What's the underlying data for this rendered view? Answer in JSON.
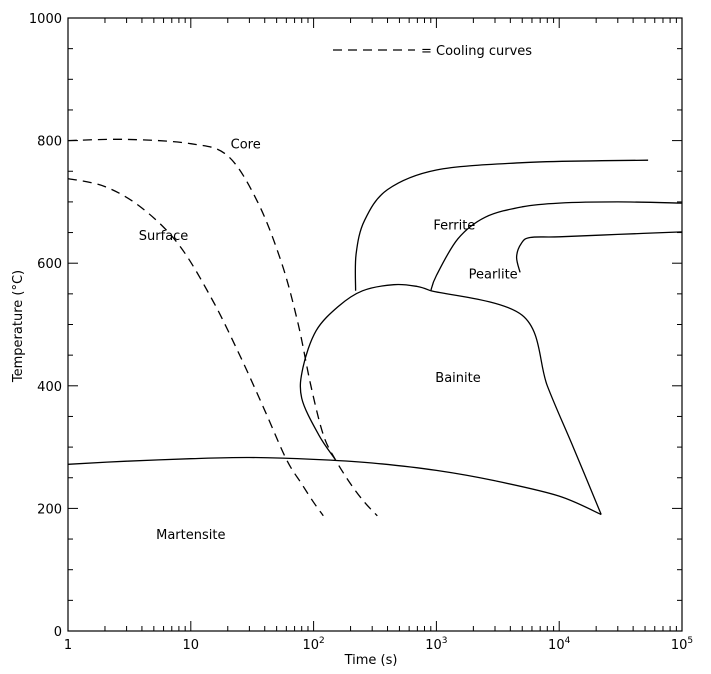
{
  "chart_data": {
    "type": "line",
    "xlabel": "Time (s)",
    "ylabel": "Temperature (°C)",
    "x_scale": "log",
    "xlim": [
      1,
      100000
    ],
    "ylim": [
      0,
      1000
    ],
    "grid": false,
    "x_ticks": [
      {
        "value": 1,
        "base": "1",
        "exp": ""
      },
      {
        "value": 10,
        "base": "10",
        "exp": ""
      },
      {
        "value": 100,
        "base": "10",
        "exp": "2"
      },
      {
        "value": 1000,
        "base": "10",
        "exp": "3"
      },
      {
        "value": 10000,
        "base": "10",
        "exp": "4"
      },
      {
        "value": 100000,
        "base": "10",
        "exp": "5"
      }
    ],
    "y_ticks": [
      0,
      200,
      400,
      600,
      800,
      1000
    ],
    "legend": {
      "text": "= Cooling curves",
      "line_style": "dashed",
      "position": "top-center"
    },
    "series": [
      {
        "id": "core-cooling",
        "label": "Core",
        "style": "dashed",
        "points": [
          [
            1,
            800
          ],
          [
            3,
            802
          ],
          [
            10,
            795
          ],
          [
            20,
            775
          ],
          [
            35,
            700
          ],
          [
            55,
            600
          ],
          [
            75,
            500
          ],
          [
            95,
            400
          ],
          [
            120,
            320
          ],
          [
            150,
            280
          ],
          [
            200,
            240
          ],
          [
            260,
            210
          ],
          [
            330,
            188
          ]
        ]
      },
      {
        "id": "surface-cooling",
        "label": "Surface",
        "style": "dashed",
        "points": [
          [
            1,
            738
          ],
          [
            2,
            725
          ],
          [
            4,
            690
          ],
          [
            8,
            630
          ],
          [
            15,
            540
          ],
          [
            25,
            450
          ],
          [
            40,
            360
          ],
          [
            60,
            280
          ],
          [
            80,
            240
          ],
          [
            100,
            210
          ],
          [
            120,
            188
          ]
        ]
      }
    ],
    "boundaries": [
      {
        "id": "ferrite-start",
        "style": "solid",
        "points": [
          [
            220,
            555
          ],
          [
            222,
            615
          ],
          [
            260,
            670
          ],
          [
            400,
            720
          ],
          [
            1000,
            752
          ],
          [
            5000,
            764
          ],
          [
            20000,
            767
          ],
          [
            53000,
            768
          ]
        ]
      },
      {
        "id": "pearlite-start",
        "style": "solid",
        "points": [
          [
            900,
            555
          ],
          [
            1000,
            580
          ],
          [
            1500,
            640
          ],
          [
            2500,
            675
          ],
          [
            5000,
            692
          ],
          [
            10000,
            698
          ],
          [
            30000,
            700
          ],
          [
            100000,
            698
          ]
        ]
      },
      {
        "id": "pearlite-finish",
        "style": "solid",
        "points": [
          [
            4800,
            585
          ],
          [
            4500,
            610
          ],
          [
            4900,
            632
          ],
          [
            5800,
            642
          ],
          [
            10000,
            643
          ],
          [
            30000,
            647
          ],
          [
            100000,
            651
          ]
        ]
      },
      {
        "id": "bainite-nose",
        "style": "solid",
        "points": [
          [
            150,
            280
          ],
          [
            110,
            320
          ],
          [
            80,
            380
          ],
          [
            82,
            430
          ],
          [
            105,
            490
          ],
          [
            160,
            530
          ],
          [
            250,
            555
          ],
          [
            450,
            565
          ],
          [
            700,
            562
          ],
          [
            900,
            555
          ]
        ]
      },
      {
        "id": "bainite-finish",
        "style": "solid",
        "points": [
          [
            900,
            555
          ],
          [
            5000,
            515
          ],
          [
            8000,
            400
          ],
          [
            13000,
            300
          ],
          [
            22000,
            190
          ]
        ]
      },
      {
        "id": "ferrite-pearlite-split",
        "style": "solid",
        "points": [
          [
            220,
            555
          ],
          [
            220,
            555
          ]
        ]
      },
      {
        "id": "martensite-start",
        "style": "solid",
        "points": [
          [
            1,
            272
          ],
          [
            3,
            277
          ],
          [
            10,
            281
          ],
          [
            30,
            283
          ],
          [
            100,
            280
          ],
          [
            300,
            274
          ],
          [
            1000,
            262
          ],
          [
            3000,
            245
          ],
          [
            10000,
            220
          ],
          [
            22000,
            190
          ]
        ]
      }
    ],
    "region_labels": [
      {
        "text": "Core",
        "x": 28,
        "y": 787
      },
      {
        "text": "Surface",
        "x": 6,
        "y": 638
      },
      {
        "text": "Ferrite",
        "x": 1400,
        "y": 655
      },
      {
        "text": "Pearlite",
        "x": 2900,
        "y": 575
      },
      {
        "text": "Bainite",
        "x": 1500,
        "y": 406
      },
      {
        "text": "Martensite",
        "x": 10,
        "y": 150
      }
    ]
  }
}
